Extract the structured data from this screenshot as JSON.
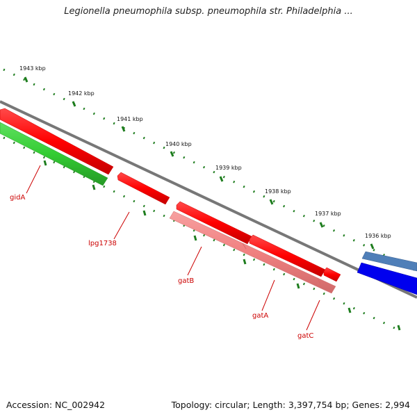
{
  "title": "Legionella pneumophila subsp. pneumophila str. Philadelphia ...",
  "footer": {
    "accession": "Accession: NC_002942",
    "topology": "Topology: circular; Length: 3,397,754 bp; Genes: 2,994"
  },
  "ticks": [
    "1943 kbp",
    "1942 kbp",
    "1941 kbp",
    "1940 kbp",
    "1939 kbp",
    "1938 kbp",
    "1937 kbp",
    "1936 kbp"
  ],
  "genes": [
    {
      "name": "gidA",
      "color": "#33cc33"
    },
    {
      "name": "lpg1738",
      "color": "#ff0000"
    },
    {
      "name": "gatB",
      "color": "#f08080"
    },
    {
      "name": "gatA",
      "color": "#ff0000"
    },
    {
      "name": "gatC",
      "color": "#ff0000"
    }
  ],
  "colors": {
    "backbone": "#777777",
    "tick": "#1e7d1e",
    "label": "#cc0000",
    "cds_forward": "#ff0000",
    "cds_reverse": "#0000ee",
    "cds_pale": "#f08080",
    "cds_green": "#33cc33",
    "cds_steel": "#4f7fb8"
  }
}
